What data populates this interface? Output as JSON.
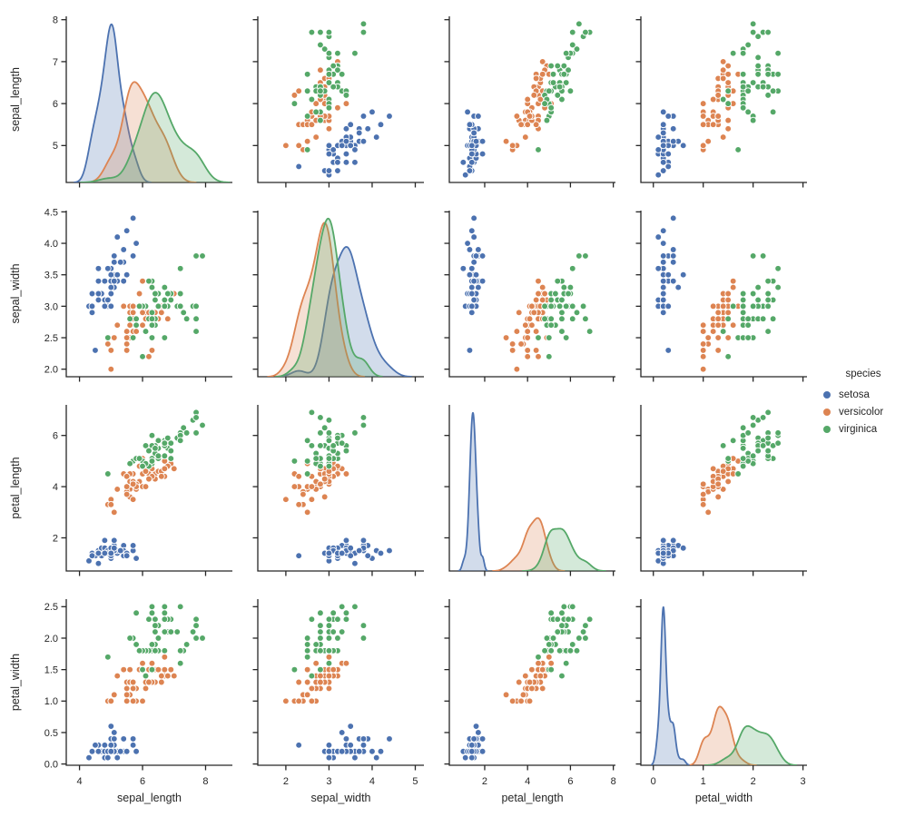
{
  "figure": {
    "background": "#ffffff"
  },
  "legend": {
    "title": "species",
    "entries": [
      {
        "label": "setosa",
        "color": "#4c72b0"
      },
      {
        "label": "versicolor",
        "color": "#dd8452"
      },
      {
        "label": "virginica",
        "color": "#55a868"
      }
    ]
  },
  "style": {
    "text_color": "#262626",
    "spine_color": "#262626",
    "marker_edge_color": "#ffffff",
    "kde_fill_opacity": 0.25
  },
  "chart_data": {
    "type": "scatter",
    "subtype": "pairplot",
    "diagonal": "kde",
    "hue": "species",
    "grid": false,
    "legend_position": "right-center",
    "variables": [
      "sepal_length",
      "sepal_width",
      "petal_length",
      "petal_width"
    ],
    "axes": {
      "x_limits": {
        "sepal_length": [
          3.58,
          8.85
        ],
        "sepal_width": [
          1.35,
          5.2
        ],
        "petal_length": [
          0.35,
          8.1
        ],
        "petal_width": [
          -0.25,
          3.08
        ]
      },
      "y_limits": {
        "sepal_length": [
          4.12,
          8.08
        ],
        "sepal_width": [
          1.88,
          4.52
        ],
        "petal_length": [
          0.705,
          7.195
        ],
        "petal_width": [
          -0.02,
          2.62
        ]
      },
      "x_ticks": {
        "sepal_length": [
          "4",
          "6",
          "8"
        ],
        "sepal_width": [
          "2",
          "3",
          "4",
          "5"
        ],
        "petal_length": [
          "2",
          "4",
          "6",
          "8"
        ],
        "petal_width": [
          "0",
          "1",
          "2",
          "3"
        ]
      },
      "y_ticks": {
        "sepal_length": [
          "5",
          "6",
          "7",
          "8"
        ],
        "sepal_width": [
          "2.0",
          "2.5",
          "3.0",
          "3.5",
          "4.0",
          "4.5"
        ],
        "petal_length": [
          "2",
          "4",
          "6"
        ],
        "petal_width": [
          "0.0",
          "0.5",
          "1.0",
          "1.5",
          "2.0",
          "2.5"
        ]
      }
    },
    "series": [
      {
        "name": "setosa",
        "color": "#4c72b0",
        "points": [
          [
            5.1,
            3.5,
            1.4,
            0.2
          ],
          [
            4.9,
            3.0,
            1.4,
            0.2
          ],
          [
            4.7,
            3.2,
            1.3,
            0.2
          ],
          [
            4.6,
            3.1,
            1.5,
            0.2
          ],
          [
            5.0,
            3.6,
            1.4,
            0.2
          ],
          [
            5.4,
            3.9,
            1.7,
            0.4
          ],
          [
            4.6,
            3.4,
            1.4,
            0.3
          ],
          [
            5.0,
            3.4,
            1.5,
            0.2
          ],
          [
            4.4,
            2.9,
            1.4,
            0.2
          ],
          [
            4.9,
            3.1,
            1.5,
            0.1
          ],
          [
            5.4,
            3.7,
            1.5,
            0.2
          ],
          [
            4.8,
            3.4,
            1.6,
            0.2
          ],
          [
            4.8,
            3.0,
            1.4,
            0.1
          ],
          [
            4.3,
            3.0,
            1.1,
            0.1
          ],
          [
            5.8,
            4.0,
            1.2,
            0.2
          ],
          [
            5.7,
            4.4,
            1.5,
            0.4
          ],
          [
            5.4,
            3.9,
            1.3,
            0.4
          ],
          [
            5.1,
            3.5,
            1.4,
            0.3
          ],
          [
            5.7,
            3.8,
            1.7,
            0.3
          ],
          [
            5.1,
            3.8,
            1.5,
            0.3
          ],
          [
            5.4,
            3.4,
            1.7,
            0.2
          ],
          [
            5.1,
            3.7,
            1.5,
            0.4
          ],
          [
            4.6,
            3.6,
            1.0,
            0.2
          ],
          [
            5.1,
            3.3,
            1.7,
            0.5
          ],
          [
            4.8,
            3.4,
            1.9,
            0.2
          ],
          [
            5.0,
            3.0,
            1.6,
            0.2
          ],
          [
            5.0,
            3.4,
            1.6,
            0.4
          ],
          [
            5.2,
            3.5,
            1.5,
            0.2
          ],
          [
            5.2,
            3.4,
            1.4,
            0.2
          ],
          [
            4.7,
            3.2,
            1.6,
            0.2
          ],
          [
            4.8,
            3.1,
            1.6,
            0.2
          ],
          [
            5.4,
            3.4,
            1.5,
            0.4
          ],
          [
            5.2,
            4.1,
            1.5,
            0.1
          ],
          [
            5.5,
            4.2,
            1.4,
            0.2
          ],
          [
            4.9,
            3.1,
            1.5,
            0.2
          ],
          [
            5.0,
            3.2,
            1.2,
            0.2
          ],
          [
            5.5,
            3.5,
            1.3,
            0.2
          ],
          [
            4.9,
            3.6,
            1.4,
            0.1
          ],
          [
            4.4,
            3.0,
            1.3,
            0.2
          ],
          [
            5.1,
            3.4,
            1.5,
            0.2
          ],
          [
            5.0,
            3.5,
            1.3,
            0.3
          ],
          [
            4.5,
            2.3,
            1.3,
            0.3
          ],
          [
            4.4,
            3.2,
            1.3,
            0.2
          ],
          [
            5.0,
            3.5,
            1.6,
            0.6
          ],
          [
            5.1,
            3.8,
            1.9,
            0.4
          ],
          [
            4.8,
            3.0,
            1.4,
            0.3
          ],
          [
            5.1,
            3.8,
            1.6,
            0.2
          ],
          [
            4.6,
            3.2,
            1.4,
            0.2
          ],
          [
            5.3,
            3.7,
            1.5,
            0.2
          ],
          [
            5.0,
            3.3,
            1.4,
            0.2
          ]
        ]
      },
      {
        "name": "versicolor",
        "color": "#dd8452",
        "points": [
          [
            7.0,
            3.2,
            4.7,
            1.4
          ],
          [
            6.4,
            3.2,
            4.5,
            1.5
          ],
          [
            6.9,
            3.1,
            4.9,
            1.5
          ],
          [
            5.5,
            2.3,
            4.0,
            1.3
          ],
          [
            6.5,
            2.8,
            4.6,
            1.5
          ],
          [
            5.7,
            2.8,
            4.5,
            1.3
          ],
          [
            6.3,
            3.3,
            4.7,
            1.6
          ],
          [
            4.9,
            2.4,
            3.3,
            1.0
          ],
          [
            6.6,
            2.9,
            4.6,
            1.3
          ],
          [
            5.2,
            2.7,
            3.9,
            1.4
          ],
          [
            5.0,
            2.0,
            3.5,
            1.0
          ],
          [
            5.9,
            3.0,
            4.2,
            1.5
          ],
          [
            6.0,
            2.2,
            4.0,
            1.0
          ],
          [
            6.1,
            2.9,
            4.7,
            1.4
          ],
          [
            5.6,
            2.9,
            3.6,
            1.3
          ],
          [
            6.7,
            3.1,
            4.4,
            1.4
          ],
          [
            5.6,
            3.0,
            4.5,
            1.5
          ],
          [
            5.8,
            2.7,
            4.1,
            1.0
          ],
          [
            6.2,
            2.2,
            4.5,
            1.5
          ],
          [
            5.6,
            2.5,
            3.9,
            1.1
          ],
          [
            5.9,
            3.2,
            4.8,
            1.8
          ],
          [
            6.1,
            2.8,
            4.0,
            1.3
          ],
          [
            6.3,
            2.5,
            4.9,
            1.5
          ],
          [
            6.1,
            2.8,
            4.7,
            1.2
          ],
          [
            6.4,
            2.9,
            4.3,
            1.3
          ],
          [
            6.6,
            3.0,
            4.4,
            1.4
          ],
          [
            6.8,
            2.8,
            4.8,
            1.4
          ],
          [
            6.7,
            3.0,
            5.0,
            1.7
          ],
          [
            6.0,
            2.9,
            4.5,
            1.5
          ],
          [
            5.7,
            2.6,
            3.5,
            1.0
          ],
          [
            5.5,
            2.4,
            3.8,
            1.1
          ],
          [
            5.5,
            2.4,
            3.7,
            1.0
          ],
          [
            5.8,
            2.7,
            3.9,
            1.2
          ],
          [
            6.0,
            2.7,
            5.1,
            1.6
          ],
          [
            5.4,
            3.0,
            4.5,
            1.5
          ],
          [
            6.0,
            3.4,
            4.5,
            1.6
          ],
          [
            6.7,
            3.1,
            4.7,
            1.5
          ],
          [
            6.3,
            2.3,
            4.4,
            1.3
          ],
          [
            5.6,
            3.0,
            4.1,
            1.3
          ],
          [
            5.5,
            2.5,
            4.0,
            1.3
          ],
          [
            5.5,
            2.6,
            4.4,
            1.2
          ],
          [
            6.1,
            3.0,
            4.6,
            1.4
          ],
          [
            5.8,
            2.6,
            4.0,
            1.2
          ],
          [
            5.0,
            2.3,
            3.3,
            1.0
          ],
          [
            5.6,
            2.7,
            4.2,
            1.3
          ],
          [
            5.7,
            3.0,
            4.2,
            1.2
          ],
          [
            5.7,
            2.9,
            4.2,
            1.3
          ],
          [
            6.2,
            2.9,
            4.3,
            1.3
          ],
          [
            5.1,
            2.5,
            3.0,
            1.1
          ],
          [
            5.7,
            2.8,
            4.1,
            1.3
          ]
        ]
      },
      {
        "name": "virginica",
        "color": "#55a868",
        "points": [
          [
            6.3,
            3.3,
            6.0,
            2.5
          ],
          [
            5.8,
            2.7,
            5.1,
            1.9
          ],
          [
            7.1,
            3.0,
            5.9,
            2.1
          ],
          [
            6.3,
            2.9,
            5.6,
            1.8
          ],
          [
            6.5,
            3.0,
            5.8,
            2.2
          ],
          [
            7.6,
            3.0,
            6.6,
            2.1
          ],
          [
            4.9,
            2.5,
            4.5,
            1.7
          ],
          [
            7.3,
            2.9,
            6.3,
            1.8
          ],
          [
            6.7,
            2.5,
            5.8,
            1.8
          ],
          [
            7.2,
            3.6,
            6.1,
            2.5
          ],
          [
            6.5,
            3.2,
            5.1,
            2.0
          ],
          [
            6.4,
            2.7,
            5.3,
            1.9
          ],
          [
            6.8,
            3.0,
            5.5,
            2.1
          ],
          [
            5.7,
            2.5,
            5.0,
            2.0
          ],
          [
            5.8,
            2.8,
            5.1,
            2.4
          ],
          [
            6.4,
            3.2,
            5.3,
            2.3
          ],
          [
            6.5,
            3.0,
            5.5,
            1.8
          ],
          [
            7.7,
            3.8,
            6.7,
            2.2
          ],
          [
            7.7,
            2.6,
            6.9,
            2.3
          ],
          [
            6.0,
            2.2,
            5.0,
            1.5
          ],
          [
            6.9,
            3.2,
            5.7,
            2.3
          ],
          [
            5.6,
            2.8,
            4.9,
            2.0
          ],
          [
            7.7,
            2.8,
            6.7,
            2.0
          ],
          [
            6.3,
            2.7,
            4.9,
            1.8
          ],
          [
            6.7,
            3.3,
            5.7,
            2.1
          ],
          [
            7.2,
            3.2,
            6.0,
            1.8
          ],
          [
            6.2,
            2.8,
            4.8,
            1.8
          ],
          [
            6.1,
            3.0,
            4.9,
            1.8
          ],
          [
            6.4,
            2.8,
            5.6,
            2.1
          ],
          [
            7.2,
            3.0,
            5.8,
            1.6
          ],
          [
            7.4,
            2.8,
            6.1,
            1.9
          ],
          [
            7.9,
            3.8,
            6.4,
            2.0
          ],
          [
            6.4,
            2.8,
            5.6,
            2.2
          ],
          [
            6.3,
            2.8,
            5.1,
            1.5
          ],
          [
            6.1,
            2.6,
            5.6,
            1.4
          ],
          [
            7.7,
            3.0,
            6.1,
            2.3
          ],
          [
            6.3,
            3.4,
            5.6,
            2.4
          ],
          [
            6.4,
            3.1,
            5.5,
            1.8
          ],
          [
            6.0,
            3.0,
            4.8,
            1.8
          ],
          [
            6.9,
            3.1,
            5.4,
            2.1
          ],
          [
            6.7,
            3.1,
            5.6,
            2.4
          ],
          [
            6.9,
            3.1,
            5.1,
            2.3
          ],
          [
            5.8,
            2.7,
            5.1,
            1.9
          ],
          [
            6.8,
            3.2,
            5.9,
            2.3
          ],
          [
            6.7,
            3.3,
            5.7,
            2.5
          ],
          [
            6.7,
            3.0,
            5.2,
            2.3
          ],
          [
            6.3,
            2.5,
            5.0,
            1.9
          ],
          [
            6.5,
            3.0,
            5.2,
            2.0
          ],
          [
            6.2,
            3.4,
            5.4,
            2.3
          ],
          [
            5.9,
            3.0,
            5.1,
            1.8
          ]
        ]
      }
    ]
  }
}
